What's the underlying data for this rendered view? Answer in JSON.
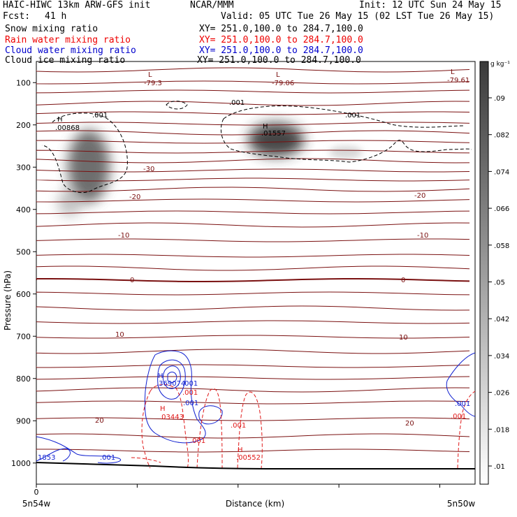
{
  "header": {
    "model": "HAIC-HIWC 13km ARW-GFS init",
    "org": "NCAR/MMM",
    "init": "Init: 12 UTC Sun 24 May 15",
    "fcst_label": "Fcst:",
    "fcst_value": "41 h",
    "valid": "Valid: 05 UTC Tue 26 May 15 (02 LST Tue 26 May 15)",
    "fields": [
      {
        "name": "Snow mixing ratio",
        "xy": "XY= 251.0,100.0 to 284.7,100.0",
        "color": "#000000"
      },
      {
        "name": "Rain water mixing ratio",
        "xy": "XY= 251.0,100.0 to 284.7,100.0",
        "color": "#ee0000"
      },
      {
        "name": "Cloud water mixing ratio",
        "xy": "XY= 251.0,100.0 to 284.7,100.0",
        "color": "#0000cc"
      },
      {
        "name": "Cloud ice mixing ratio",
        "xy": "XY= 251.0,100.0 to 284.7,100.0",
        "color": "#000000"
      }
    ]
  },
  "chart_data": {
    "type": "heatmap",
    "xlabel": "Distance (km)",
    "ylabel": "Pressure (hPa)",
    "x_tick_start": "0",
    "x_end_labels": [
      "5n54w",
      "5n50w"
    ],
    "y_ticks": [
      100,
      200,
      300,
      400,
      500,
      600,
      700,
      800,
      900,
      1000
    ],
    "ylim": [
      1050,
      50
    ],
    "colorbar": {
      "unit": "g kg⁻¹",
      "labels": [
        ".01",
        ".018",
        ".026",
        ".034",
        ".042",
        ".05",
        ".058",
        ".066",
        ".074",
        ".082",
        ".09"
      ]
    },
    "snow_maxima": [
      {
        "label": "H",
        "value": ".00868"
      },
      {
        "label": "H",
        "value": ".01557"
      }
    ],
    "temperature_labels": [
      {
        "value": "-79.3",
        "mark": "L"
      },
      {
        "value": "-79.06",
        "mark": "L"
      },
      {
        "value": "-79.61",
        "mark": "L"
      },
      {
        "value": "-30"
      },
      {
        "value": "-20"
      },
      {
        "value": "-20"
      },
      {
        "value": "-10"
      },
      {
        "value": "-10"
      },
      {
        "value": "0"
      },
      {
        "value": "0"
      },
      {
        "value": "10"
      },
      {
        "value": "10"
      },
      {
        "value": "20"
      },
      {
        "value": "20"
      }
    ],
    "ice_labels": [
      ".001",
      ".001",
      ".001"
    ],
    "cloud_water_labels": [
      {
        "mark": "H",
        "value": ".369074"
      },
      {
        "value": ".001"
      },
      {
        "value": ".001"
      },
      {
        "value": "1853"
      },
      {
        "value": ".001"
      },
      {
        "value": ".001"
      }
    ],
    "rain_labels": [
      {
        "mark": "H",
        "value": ".03443"
      },
      {
        "mark": "H",
        "value": ".00552"
      },
      {
        "value": ".001"
      },
      {
        "value": ".001"
      },
      {
        "value": ".001"
      },
      {
        "value": ".001"
      }
    ]
  }
}
